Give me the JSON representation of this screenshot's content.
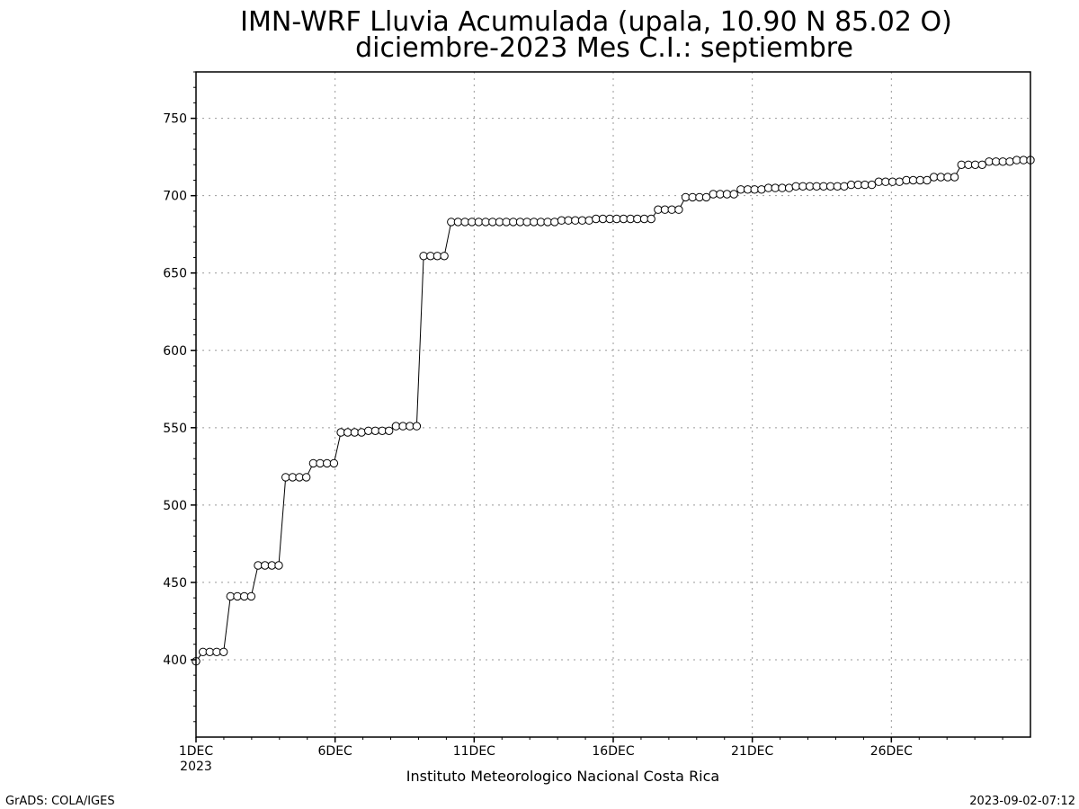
{
  "chart_data": {
    "type": "line",
    "title": "IMN-WRF  Lluvia Acumulada  (upala, 10.90  N 85.02  O)",
    "subtitle": "diciembre-2023 Mes C.I.: septiembre",
    "xlabel": "Instituto Meteorologico Nacional Costa Rica",
    "ylabel": "",
    "ylim": [
      350,
      780
    ],
    "yticks": [
      400,
      450,
      500,
      550,
      600,
      650,
      700,
      750
    ],
    "xticks": [
      {
        "day": 1,
        "label": "1DEC"
      },
      {
        "day": 6,
        "label": "6DEC"
      },
      {
        "day": 11,
        "label": "11DEC"
      },
      {
        "day": 16,
        "label": "16DEC"
      },
      {
        "day": 21,
        "label": "21DEC"
      },
      {
        "day": 26,
        "label": "26DEC"
      }
    ],
    "xtick_year": "2023",
    "xlim_days": [
      1,
      31
    ],
    "grid": true,
    "marker": "open-circle",
    "series": [
      {
        "values": [
          399,
          405,
          405,
          405,
          405,
          441,
          441,
          441,
          441,
          461,
          461,
          461,
          461,
          518,
          518,
          518,
          518,
          527,
          527,
          527,
          527,
          547,
          547,
          547,
          547,
          548,
          548,
          548,
          548,
          551,
          551,
          551,
          551,
          661,
          661,
          661,
          661,
          683,
          683,
          683,
          683,
          683,
          683,
          683,
          683,
          683,
          683,
          683,
          683,
          683,
          683,
          683,
          683,
          684,
          684,
          684,
          684,
          684,
          685,
          685,
          685,
          685,
          685,
          685,
          685,
          685,
          685,
          691,
          691,
          691,
          691,
          699,
          699,
          699,
          699,
          701,
          701,
          701,
          701,
          704,
          704,
          704,
          704,
          705,
          705,
          705,
          705,
          706,
          706,
          706,
          706,
          706,
          706,
          706,
          706,
          707,
          707,
          707,
          707,
          709,
          709,
          709,
          709,
          710,
          710,
          710,
          710,
          712,
          712,
          712,
          712,
          720,
          720,
          720,
          720,
          722,
          722,
          722,
          722,
          723,
          723,
          723
        ]
      }
    ]
  },
  "footer": {
    "left": "GrADS: COLA/IGES",
    "right": "2023-09-02-07:12"
  }
}
